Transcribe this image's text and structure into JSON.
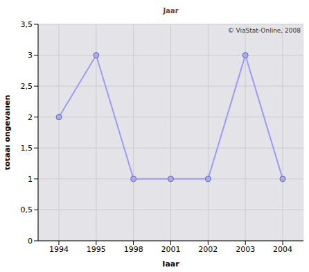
{
  "chart_data": {
    "type": "line",
    "title": "Jaar",
    "x_label": "Jaar",
    "y_label": "totaal ongevallen",
    "annotation": "© ViaStat-Online, 2008",
    "categories": [
      "1994",
      "1995",
      "1998",
      "2001",
      "2002",
      "2003",
      "2004"
    ],
    "values": [
      2,
      3,
      1,
      1,
      1,
      3,
      1
    ],
    "color": "#9999ff",
    "marker": "circle",
    "ylim": [
      0,
      3.5
    ],
    "yticks": [
      0,
      {
        "value": 0.5,
        "label": "0,5"
      },
      1,
      {
        "value": 1.5,
        "label": "1,5"
      },
      2,
      {
        "value": 2.5,
        "label": "2,5"
      },
      3,
      {
        "value": 3.5,
        "label": "3,5"
      }
    ],
    "grid": true
  }
}
